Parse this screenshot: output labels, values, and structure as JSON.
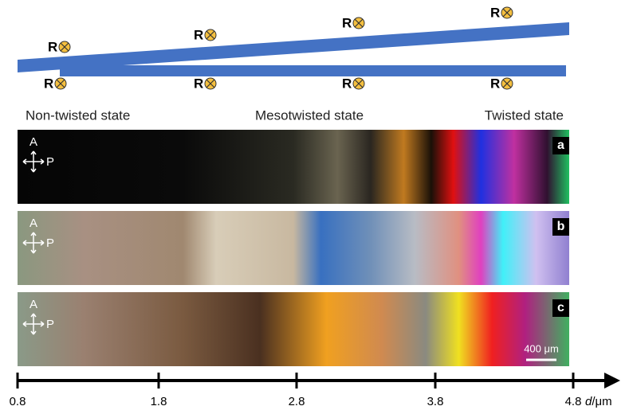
{
  "rubbing_labels": {
    "top": [
      "R",
      "R",
      "R",
      "R"
    ],
    "bottom": [
      "R",
      "R",
      "R",
      "R"
    ]
  },
  "states": [
    "Non-twisted state",
    "Mesotwisted state",
    "Twisted state"
  ],
  "panels": [
    {
      "label": "a",
      "analyzer": "A",
      "polarizer": "P"
    },
    {
      "label": "b",
      "analyzer": "A",
      "polarizer": "P"
    },
    {
      "label": "c",
      "analyzer": "A",
      "polarizer": "P"
    }
  ],
  "scale_bar": "400 μm",
  "axis": {
    "ticks": [
      0.8,
      1.8,
      2.8,
      3.8,
      4.8
    ],
    "label": {
      "variable": "d",
      "unit": "/μm"
    }
  }
}
